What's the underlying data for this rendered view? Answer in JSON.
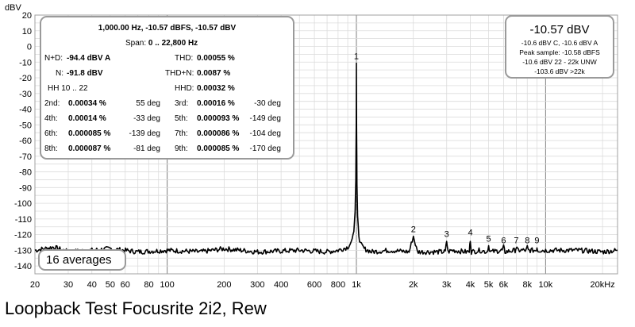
{
  "chart_data": {
    "type": "line",
    "x_scale": "log",
    "xlim": [
      20,
      24000
    ],
    "ylim": [
      -145,
      20
    ],
    "ylabel": "dBV",
    "xticks": [
      {
        "v": 20,
        "label": "20"
      },
      {
        "v": 30,
        "label": "30"
      },
      {
        "v": 40,
        "label": "40"
      },
      {
        "v": 50,
        "label": "50"
      },
      {
        "v": 60,
        "label": "60"
      },
      {
        "v": 80,
        "label": "80"
      },
      {
        "v": 100,
        "label": "100"
      },
      {
        "v": 200,
        "label": "200"
      },
      {
        "v": 300,
        "label": "300"
      },
      {
        "v": 400,
        "label": "400"
      },
      {
        "v": 600,
        "label": "600"
      },
      {
        "v": 800,
        "label": "800"
      },
      {
        "v": 1000,
        "label": "1k"
      },
      {
        "v": 2000,
        "label": "2k"
      },
      {
        "v": 3000,
        "label": "3k"
      },
      {
        "v": 4000,
        "label": "4k"
      },
      {
        "v": 5000,
        "label": "5k"
      },
      {
        "v": 6000,
        "label": "6k"
      },
      {
        "v": 8000,
        "label": "8k"
      },
      {
        "v": 10000,
        "label": "10k"
      },
      {
        "v": 20000,
        "label": "20kHz"
      }
    ],
    "yticks": [
      20,
      10,
      0,
      -10,
      -20,
      -30,
      -40,
      -50,
      -60,
      -70,
      -80,
      -90,
      -100,
      -110,
      -120,
      -130,
      -140
    ],
    "grid": true,
    "series": [
      {
        "line_color": "#000000",
        "x": [
          20,
          25,
          30,
          40,
          50,
          70,
          100,
          150,
          200,
          300,
          500,
          700,
          800,
          900,
          950,
          970,
          985,
          993,
          998,
          1000,
          1002,
          1007,
          1015,
          1030,
          1050,
          1100,
          1200,
          1500,
          1900,
          2000,
          2100,
          2800,
          2950,
          3000,
          3050,
          3200,
          3800,
          3950,
          4000,
          4050,
          4500,
          4900,
          5000,
          5100,
          5900,
          6000,
          6100,
          6900,
          7000,
          7100,
          7900,
          8000,
          8100,
          8900,
          9000,
          9100,
          10000,
          15000,
          20000,
          24000
        ],
        "y": [
          -130,
          -128,
          -131,
          -130,
          -129,
          -131,
          -130,
          -131,
          -129,
          -131,
          -130,
          -131,
          -130,
          -128,
          -124,
          -118,
          -105,
          -85,
          -50,
          -10.57,
          -50,
          -88,
          -108,
          -120,
          -126,
          -129,
          -131,
          -130,
          -131,
          -121,
          -131,
          -131,
          -131,
          -124,
          -131,
          -130,
          -131,
          -131,
          -123,
          -131,
          -130,
          -131,
          -127,
          -131,
          -130,
          -128,
          -131,
          -130,
          -128,
          -130,
          -130,
          -128,
          -130,
          -130,
          -128,
          -130,
          -130,
          -130,
          -131,
          -130
        ]
      }
    ],
    "peak_labels": [
      {
        "label": "1",
        "freq": 1000,
        "level": -10.57
      },
      {
        "label": "2",
        "freq": 2000,
        "level": -121
      },
      {
        "label": "3",
        "freq": 3000,
        "level": -124
      },
      {
        "label": "4",
        "freq": 4000,
        "level": -123
      },
      {
        "label": "5",
        "freq": 5000,
        "level": -127
      },
      {
        "label": "6",
        "freq": 6000,
        "level": -128
      },
      {
        "label": "7",
        "freq": 7000,
        "level": -128
      },
      {
        "label": "8",
        "freq": 8000,
        "level": -128
      },
      {
        "label": "9",
        "freq": 9000,
        "level": -128
      }
    ],
    "colors": {
      "background": "#ffffff",
      "grid_minor": "#dcdcdc",
      "grid_major": "#808080",
      "trace": "#000000",
      "panel_border": "#9a9a9a"
    }
  },
  "info_panel": {
    "header": "1,000.00 Hz, -10.57 dBFS, -10.57 dBV",
    "span_label": "Span:",
    "span_value": "0 .. 22,800 Hz",
    "nd_label": "N+D:",
    "nd_value": "-94.4 dBV A",
    "thd_label": "THD:",
    "thd_value": "0.00055 %",
    "n_label": "N:",
    "n_value": "-91.8 dBV",
    "thdn_label": "THD+N:",
    "thdn_value": "0.0087 %",
    "hh_label": "HH 10 .. 22",
    "hhd_label": "HHD:",
    "hhd_value": "0.00032 %",
    "harmonics": [
      {
        "label": "2nd:",
        "value": "0.00034 %",
        "phase": "55 deg"
      },
      {
        "label": "3rd:",
        "value": "0.00016 %",
        "phase": "-30 deg"
      },
      {
        "label": "4th:",
        "value": "0.00014 %",
        "phase": "-33 deg"
      },
      {
        "label": "5th:",
        "value": "0.000093 %",
        "phase": "-149 deg"
      },
      {
        "label": "6th:",
        "value": "0.000085 %",
        "phase": "-139 deg"
      },
      {
        "label": "7th:",
        "value": "0.000086 %",
        "phase": "-104 deg"
      },
      {
        "label": "8th:",
        "value": "0.000087 %",
        "phase": "-81 deg"
      },
      {
        "label": "9th:",
        "value": "0.000085 %",
        "phase": "-170 deg"
      }
    ]
  },
  "level_panel": {
    "main": "-10.57 dBV",
    "lines": [
      "-10.6 dBV C, -10.6 dBV A",
      "Peak sample: -10.58 dBFS",
      "-10.6 dBV 22 - 22k UNW",
      "-103.6 dBV >22k"
    ]
  },
  "averages": "16 averages",
  "caption": "Loopback Test Focusrite 2i2, Rew"
}
